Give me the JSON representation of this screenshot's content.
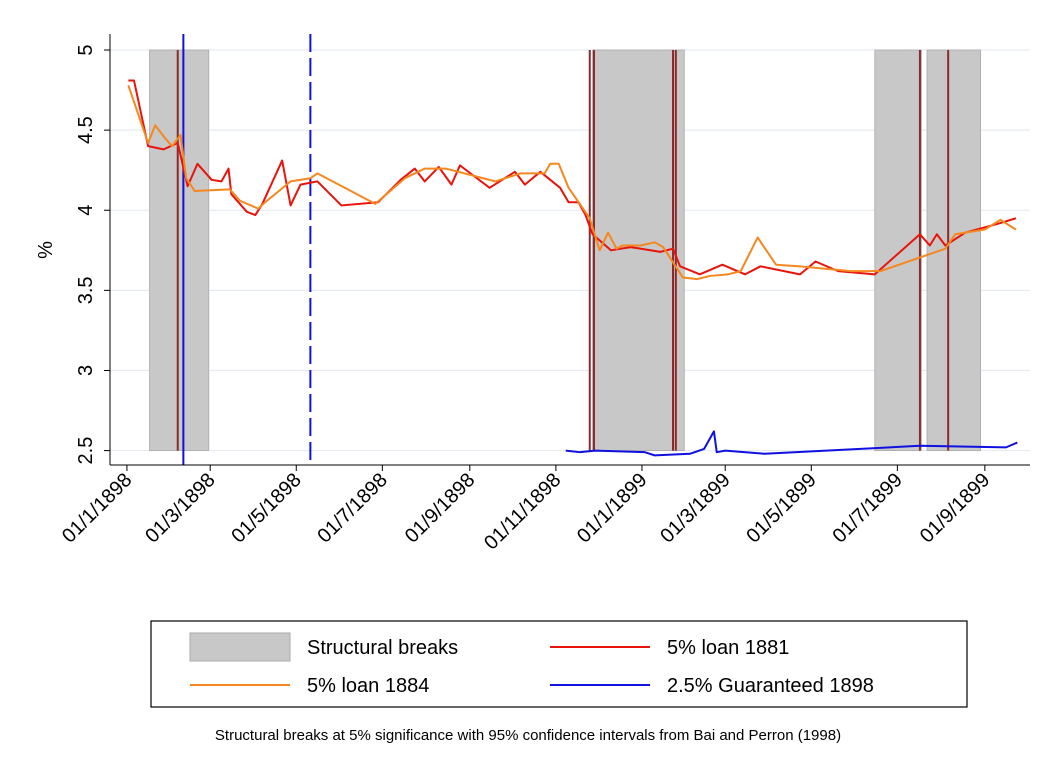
{
  "chart_data": {
    "type": "line",
    "ylabel": "%",
    "ylim": [
      2.41,
      5.1
    ],
    "yticks": [
      2.5,
      3,
      3.5,
      4,
      4.5,
      5
    ],
    "xlim": [
      "1897-12-20",
      "1899-10-03"
    ],
    "xticks": [
      {
        "value": "1898-01-01",
        "label": "01/1/1898"
      },
      {
        "value": "1898-03-01",
        "label": "01/3/1898"
      },
      {
        "value": "1898-05-01",
        "label": "01/5/1898"
      },
      {
        "value": "1898-07-01",
        "label": "01/7/1898"
      },
      {
        "value": "1898-09-01",
        "label": "01/9/1898"
      },
      {
        "value": "1898-11-01",
        "label": "01/11/1898"
      },
      {
        "value": "1899-01-01",
        "label": "01/1/1899"
      },
      {
        "value": "1899-03-01",
        "label": "01/3/1899"
      },
      {
        "value": "1899-05-01",
        "label": "01/5/1899"
      },
      {
        "value": "1899-07-01",
        "label": "01/7/1899"
      },
      {
        "value": "1899-09-01",
        "label": "01/9/1899"
      }
    ],
    "grid": true,
    "break_label": "Structural breaks",
    "break_color": "#c8c8c8",
    "break_ylim": [
      2.5,
      5
    ],
    "break_intervals": [
      [
        "1898-01-17",
        "1898-02-28"
      ],
      [
        "1898-11-27",
        "1899-01-31"
      ],
      [
        "1899-06-15",
        "1899-07-18"
      ],
      [
        "1899-07-22",
        "1899-08-29"
      ]
    ],
    "break_lines": {
      "color": "#8b2a2a",
      "x": [
        "1898-02-06",
        "1898-11-25",
        "1898-11-28",
        "1899-01-23",
        "1899-01-25",
        "1899-07-17",
        "1899-08-06"
      ]
    },
    "vlines": [
      {
        "x": "1898-02-10",
        "color": "#1010e0",
        "style": "solid"
      },
      {
        "x": "1898-05-11",
        "color": "#1010e0",
        "style": "dashed"
      }
    ],
    "series": [
      {
        "name": "5% loan 1881",
        "color": "#e8140c",
        "x": [
          "1898-01-02",
          "1898-01-06",
          "1898-01-16",
          "1898-01-27",
          "1898-02-06",
          "1898-02-13",
          "1898-02-20",
          "1898-03-02",
          "1898-03-09",
          "1898-03-14",
          "1898-03-16",
          "1898-03-27",
          "1898-04-02",
          "1898-04-07",
          "1898-04-21",
          "1898-04-27",
          "1898-05-04",
          "1898-05-16",
          "1898-06-02",
          "1898-06-28",
          "1898-07-14",
          "1898-07-24",
          "1898-07-31",
          "1898-08-10",
          "1898-08-19",
          "1898-08-25",
          "1898-09-15",
          "1898-10-03",
          "1898-10-10",
          "1898-10-21",
          "1898-11-04",
          "1898-11-10",
          "1898-11-17",
          "1898-11-22",
          "1898-11-27",
          "1898-12-10",
          "1898-12-24",
          "1899-01-14",
          "1899-01-23",
          "1899-01-28",
          "1899-02-11",
          "1899-02-27",
          "1899-03-15",
          "1899-03-26",
          "1899-04-23",
          "1899-05-04",
          "1899-05-20",
          "1899-06-15",
          "1899-07-17",
          "1899-07-24",
          "1899-07-29",
          "1899-08-04",
          "1899-08-18",
          "1899-09-12",
          "1899-09-23"
        ],
        "values": [
          4.81,
          4.81,
          4.4,
          4.38,
          4.42,
          4.15,
          4.29,
          4.19,
          4.18,
          4.26,
          4.1,
          3.99,
          3.97,
          4.04,
          4.31,
          4.03,
          4.16,
          4.18,
          4.03,
          4.05,
          4.19,
          4.26,
          4.18,
          4.27,
          4.16,
          4.28,
          4.14,
          4.24,
          4.16,
          4.24,
          4.14,
          4.05,
          4.05,
          3.97,
          3.85,
          3.75,
          3.77,
          3.74,
          3.76,
          3.65,
          3.6,
          3.66,
          3.6,
          3.65,
          3.6,
          3.68,
          3.62,
          3.6,
          3.85,
          3.78,
          3.85,
          3.78,
          3.86,
          3.92,
          3.95
        ]
      },
      {
        "name": "5% loan 1884",
        "color": "#f5871f",
        "x": [
          "1898-01-02",
          "1898-01-16",
          "1898-01-21",
          "1898-01-28",
          "1898-02-02",
          "1898-02-08",
          "1898-02-12",
          "1898-02-18",
          "1898-03-15",
          "1898-03-22",
          "1898-04-04",
          "1898-04-09",
          "1898-04-27",
          "1898-05-11",
          "1898-05-16",
          "1898-06-26",
          "1898-07-17",
          "1898-07-31",
          "1898-08-15",
          "1898-09-19",
          "1898-10-07",
          "1898-10-24",
          "1898-10-28",
          "1898-11-03",
          "1898-11-10",
          "1898-11-25",
          "1898-12-02",
          "1898-12-08",
          "1898-12-14",
          "1898-12-18",
          "1898-12-31",
          "1899-01-10",
          "1899-01-16",
          "1899-01-30",
          "1899-02-09",
          "1899-02-18",
          "1899-03-03",
          "1899-03-12",
          "1899-03-24",
          "1899-04-06",
          "1899-04-23",
          "1899-05-29",
          "1899-06-19",
          "1899-08-04",
          "1899-08-11",
          "1899-09-01",
          "1899-09-12",
          "1899-09-23"
        ],
        "values": [
          4.78,
          4.42,
          4.53,
          4.45,
          4.4,
          4.47,
          4.2,
          4.12,
          4.13,
          4.06,
          4.01,
          4.05,
          4.18,
          4.2,
          4.23,
          4.04,
          4.2,
          4.26,
          4.26,
          4.18,
          4.23,
          4.23,
          4.29,
          4.29,
          4.14,
          3.95,
          3.75,
          3.86,
          3.76,
          3.78,
          3.78,
          3.8,
          3.77,
          3.58,
          3.57,
          3.59,
          3.6,
          3.62,
          3.83,
          3.66,
          3.65,
          3.62,
          3.62,
          3.76,
          3.85,
          3.88,
          3.94,
          3.88
        ]
      },
      {
        "name": "2.5% Guaranteed 1898",
        "color": "#1010e0",
        "x": [
          "1898-11-08",
          "1898-11-18",
          "1898-11-29",
          "1899-01-03",
          "1899-01-10",
          "1899-02-04",
          "1899-02-14",
          "1899-02-21",
          "1899-02-23",
          "1899-03-01",
          "1899-03-29",
          "1899-07-17",
          "1899-09-16",
          "1899-09-24"
        ],
        "values": [
          2.5,
          2.49,
          2.5,
          2.49,
          2.47,
          2.48,
          2.51,
          2.62,
          2.49,
          2.5,
          2.48,
          2.53,
          2.52,
          2.55
        ]
      }
    ],
    "note": "Structural breaks at 5% significance with 95% confidence intervals from Bai and Perron (1998)"
  }
}
